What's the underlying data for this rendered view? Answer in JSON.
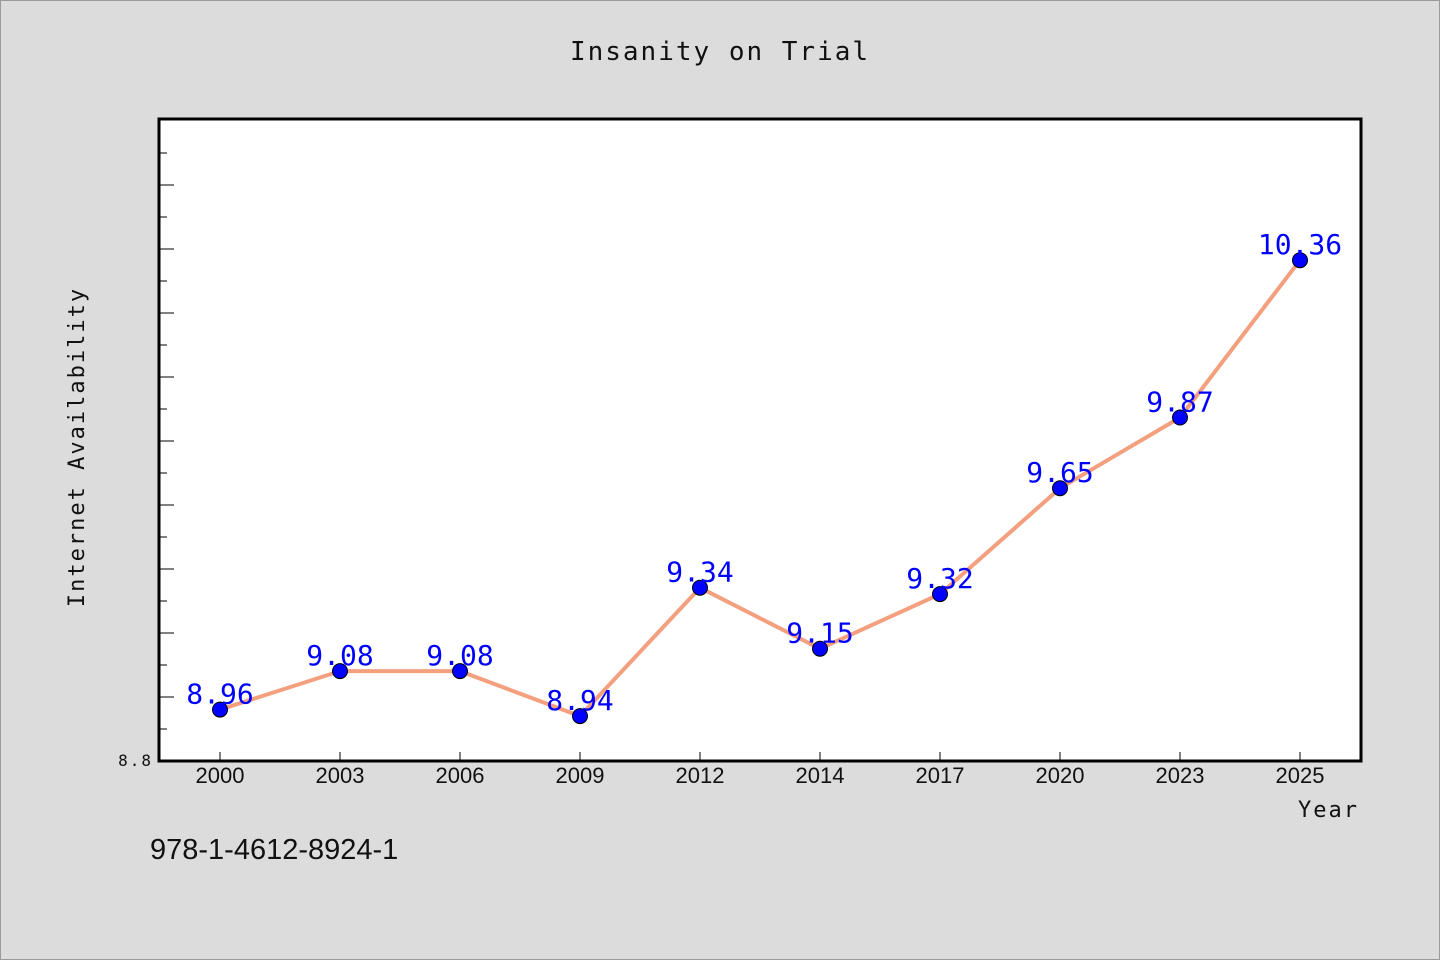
{
  "chart_data": {
    "type": "line",
    "title": "Insanity on Trial",
    "xlabel": "Year",
    "ylabel": "Internet Availability",
    "categories": [
      "2000",
      "2003",
      "2006",
      "2009",
      "2012",
      "2014",
      "2017",
      "2020",
      "2023",
      "2025"
    ],
    "series": [
      {
        "values": [
          8.96,
          9.08,
          9.08,
          8.94,
          9.34,
          9.15,
          9.32,
          9.65,
          9.87,
          10.36
        ],
        "line_color": "#f4a07e",
        "marker_color": "#0000ff"
      }
    ],
    "data_labels": [
      "8.96",
      "9.08",
      "9.08",
      "8.94",
      "9.34",
      "9.15",
      "9.32",
      "9.65",
      "9.87",
      "10.36"
    ],
    "ylim": [
      8.8,
      10.8
    ],
    "y_tick_labels": [
      "8.8"
    ],
    "grid": false,
    "legend": "none"
  },
  "footer": {
    "isbn": "978-1-4612-8924-1"
  }
}
